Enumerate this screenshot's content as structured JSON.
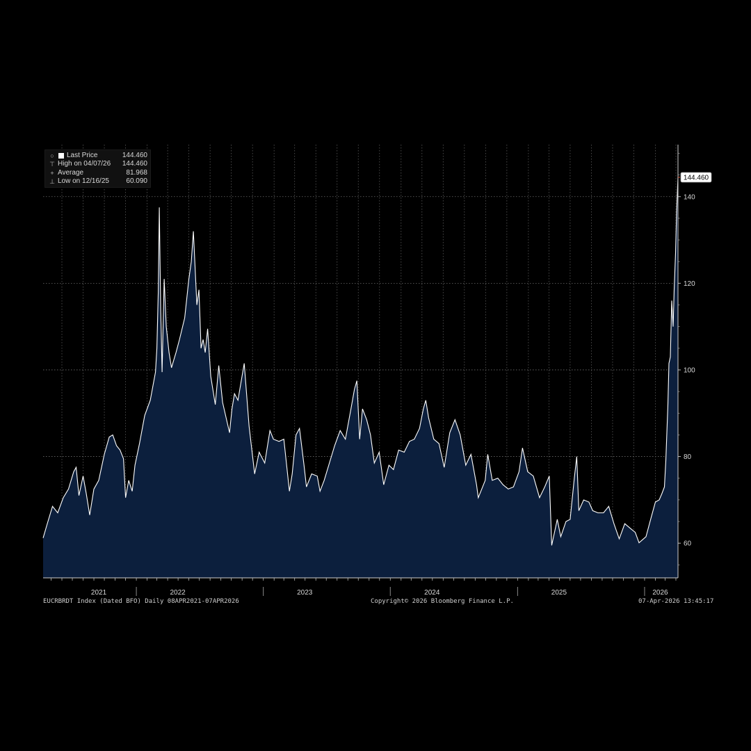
{
  "legend": {
    "last_price_label": "Last Price",
    "last_price_value": "144.460",
    "high_label": "High on 04/07/26",
    "high_value": "144.460",
    "average_label": "Average",
    "average_value": "81.968",
    "low_label": "Low on 12/16/25",
    "low_value": "60.090"
  },
  "footer": {
    "left": "EUCRBRDT Index (Dated BFO) Daily 08APR2021-07APR2026",
    "center": "Copyright© 2026 Bloomberg Finance L.P.",
    "right": "07-Apr-2026 13:45:17"
  },
  "colors": {
    "background": "#000000",
    "area_fill": "#0c1f3d",
    "line": "#ffffff",
    "last_marker": "#e05a3a"
  },
  "chart_data": {
    "type": "area",
    "ylim": [
      52,
      152
    ],
    "xlim": [
      "2021-04-08",
      "2026-04-07"
    ],
    "yticks": [
      60,
      80,
      100,
      120,
      140
    ],
    "xtick_labels": [
      {
        "label": "2021",
        "date": "2021-09-15"
      },
      {
        "label": "2022",
        "date": "2022-04-30"
      },
      {
        "label": "2023",
        "date": "2023-04-30"
      },
      {
        "label": "2024",
        "date": "2024-04-30"
      },
      {
        "label": "2025",
        "date": "2025-04-30"
      },
      {
        "label": "2026",
        "date": "2026-02-15"
      }
    ],
    "year_separators": [
      "2022-01-01",
      "2023-01-01",
      "2024-01-01",
      "2025-01-01",
      "2026-01-01"
    ],
    "grid": true,
    "last_value_label": "144.460",
    "series": [
      {
        "values": [
          [
            "2021-04-08",
            61.2
          ],
          [
            "2021-04-20",
            64.5
          ],
          [
            "2021-05-05",
            68.5
          ],
          [
            "2021-05-20",
            67.0
          ],
          [
            "2021-06-05",
            70.5
          ],
          [
            "2021-06-20",
            72.5
          ],
          [
            "2021-07-05",
            76.5
          ],
          [
            "2021-07-12",
            77.5
          ],
          [
            "2021-07-20",
            71.0
          ],
          [
            "2021-08-01",
            75.5
          ],
          [
            "2021-08-10",
            71.5
          ],
          [
            "2021-08-20",
            66.5
          ],
          [
            "2021-09-01",
            72.5
          ],
          [
            "2021-09-15",
            74.5
          ],
          [
            "2021-10-01",
            80.5
          ],
          [
            "2021-10-15",
            84.5
          ],
          [
            "2021-10-25",
            85.0
          ],
          [
            "2021-11-05",
            82.5
          ],
          [
            "2021-11-15",
            81.5
          ],
          [
            "2021-11-25",
            79.5
          ],
          [
            "2021-12-01",
            70.5
          ],
          [
            "2021-12-10",
            74.5
          ],
          [
            "2021-12-20",
            72.0
          ],
          [
            "2021-12-28",
            78.0
          ],
          [
            "2022-01-10",
            83.0
          ],
          [
            "2022-01-25",
            89.5
          ],
          [
            "2022-02-10",
            93.0
          ],
          [
            "2022-02-25",
            99.5
          ],
          [
            "2022-03-01",
            105.0
          ],
          [
            "2022-03-05",
            118.0
          ],
          [
            "2022-03-08",
            137.5
          ],
          [
            "2022-03-12",
            114.0
          ],
          [
            "2022-03-16",
            99.5
          ],
          [
            "2022-03-22",
            121.0
          ],
          [
            "2022-03-28",
            110.0
          ],
          [
            "2022-04-05",
            104.0
          ],
          [
            "2022-04-12",
            100.5
          ],
          [
            "2022-04-25",
            104.0
          ],
          [
            "2022-05-05",
            107.0
          ],
          [
            "2022-05-20",
            112.0
          ],
          [
            "2022-06-01",
            121.0
          ],
          [
            "2022-06-08",
            125.0
          ],
          [
            "2022-06-14",
            132.0
          ],
          [
            "2022-06-24",
            115.0
          ],
          [
            "2022-06-30",
            118.5
          ],
          [
            "2022-07-06",
            105.0
          ],
          [
            "2022-07-12",
            107.0
          ],
          [
            "2022-07-18",
            104.0
          ],
          [
            "2022-07-25",
            109.5
          ],
          [
            "2022-08-03",
            98.5
          ],
          [
            "2022-08-16",
            92.0
          ],
          [
            "2022-08-26",
            101.0
          ],
          [
            "2022-09-06",
            92.5
          ],
          [
            "2022-09-26",
            85.5
          ],
          [
            "2022-10-03",
            91.0
          ],
          [
            "2022-10-10",
            94.5
          ],
          [
            "2022-10-20",
            93.0
          ],
          [
            "2022-11-07",
            101.5
          ],
          [
            "2022-11-21",
            87.0
          ],
          [
            "2022-12-07",
            76.0
          ],
          [
            "2022-12-20",
            81.0
          ],
          [
            "2023-01-05",
            78.5
          ],
          [
            "2023-01-20",
            86.0
          ],
          [
            "2023-01-30",
            84.0
          ],
          [
            "2023-02-15",
            83.5
          ],
          [
            "2023-03-01",
            84.0
          ],
          [
            "2023-03-17",
            72.0
          ],
          [
            "2023-03-25",
            76.0
          ],
          [
            "2023-04-05",
            85.0
          ],
          [
            "2023-04-15",
            86.5
          ],
          [
            "2023-04-28",
            78.0
          ],
          [
            "2023-05-05",
            73.0
          ],
          [
            "2023-05-20",
            76.0
          ],
          [
            "2023-06-05",
            75.5
          ],
          [
            "2023-06-13",
            72.0
          ],
          [
            "2023-06-25",
            74.5
          ],
          [
            "2023-07-10",
            78.5
          ],
          [
            "2023-07-25",
            82.5
          ],
          [
            "2023-08-10",
            86.0
          ],
          [
            "2023-08-25",
            84.0
          ],
          [
            "2023-09-10",
            91.0
          ],
          [
            "2023-09-20",
            95.5
          ],
          [
            "2023-09-27",
            97.5
          ],
          [
            "2023-10-05",
            84.0
          ],
          [
            "2023-10-13",
            91.0
          ],
          [
            "2023-10-25",
            88.5
          ],
          [
            "2023-11-05",
            85.0
          ],
          [
            "2023-11-16",
            78.5
          ],
          [
            "2023-11-30",
            81.0
          ],
          [
            "2023-12-13",
            73.5
          ],
          [
            "2023-12-28",
            78.0
          ],
          [
            "2024-01-10",
            77.0
          ],
          [
            "2024-01-25",
            81.5
          ],
          [
            "2024-02-10",
            81.0
          ],
          [
            "2024-02-25",
            83.5
          ],
          [
            "2024-03-10",
            84.0
          ],
          [
            "2024-03-25",
            86.5
          ],
          [
            "2024-04-05",
            91.0
          ],
          [
            "2024-04-12",
            93.0
          ],
          [
            "2024-04-20",
            89.0
          ],
          [
            "2024-05-05",
            84.0
          ],
          [
            "2024-05-20",
            83.0
          ],
          [
            "2024-06-04",
            77.5
          ],
          [
            "2024-06-20",
            85.5
          ],
          [
            "2024-07-05",
            88.5
          ],
          [
            "2024-07-20",
            85.0
          ],
          [
            "2024-08-05",
            78.0
          ],
          [
            "2024-08-20",
            80.5
          ],
          [
            "2024-09-05",
            73.5
          ],
          [
            "2024-09-10",
            70.5
          ],
          [
            "2024-09-30",
            74.5
          ],
          [
            "2024-10-07",
            80.5
          ],
          [
            "2024-10-20",
            74.5
          ],
          [
            "2024-11-05",
            75.0
          ],
          [
            "2024-11-20",
            73.5
          ],
          [
            "2024-12-05",
            72.5
          ],
          [
            "2024-12-20",
            73.0
          ],
          [
            "2025-01-05",
            76.5
          ],
          [
            "2025-01-15",
            82.0
          ],
          [
            "2025-01-30",
            76.5
          ],
          [
            "2025-02-15",
            75.5
          ],
          [
            "2025-03-05",
            70.5
          ],
          [
            "2025-03-20",
            73.0
          ],
          [
            "2025-04-02",
            75.5
          ],
          [
            "2025-04-09",
            59.5
          ],
          [
            "2025-04-25",
            65.5
          ],
          [
            "2025-05-05",
            61.5
          ],
          [
            "2025-05-20",
            65.0
          ],
          [
            "2025-06-01",
            65.5
          ],
          [
            "2025-06-13",
            75.0
          ],
          [
            "2025-06-20",
            80.0
          ],
          [
            "2025-06-26",
            67.5
          ],
          [
            "2025-07-10",
            70.0
          ],
          [
            "2025-07-25",
            69.5
          ],
          [
            "2025-08-05",
            67.5
          ],
          [
            "2025-08-20",
            67.0
          ],
          [
            "2025-09-05",
            67.0
          ],
          [
            "2025-09-20",
            68.5
          ],
          [
            "2025-10-05",
            64.5
          ],
          [
            "2025-10-20",
            61.0
          ],
          [
            "2025-11-05",
            64.5
          ],
          [
            "2025-11-20",
            63.5
          ],
          [
            "2025-12-05",
            62.5
          ],
          [
            "2025-12-16",
            60.09
          ],
          [
            "2026-01-05",
            61.5
          ],
          [
            "2026-01-20",
            66.0
          ],
          [
            "2026-02-01",
            69.5
          ],
          [
            "2026-02-12",
            70.0
          ],
          [
            "2026-02-20",
            71.5
          ],
          [
            "2026-02-27",
            73.0
          ],
          [
            "2026-03-03",
            79.0
          ],
          [
            "2026-03-09",
            92.0
          ],
          [
            "2026-03-12",
            101.5
          ],
          [
            "2026-03-16",
            103.0
          ],
          [
            "2026-03-20",
            116.0
          ],
          [
            "2026-03-24",
            110.0
          ],
          [
            "2026-03-27",
            118.5
          ],
          [
            "2026-03-31",
            127.0
          ],
          [
            "2026-04-03",
            136.5
          ],
          [
            "2026-04-07",
            144.46
          ]
        ]
      }
    ]
  }
}
